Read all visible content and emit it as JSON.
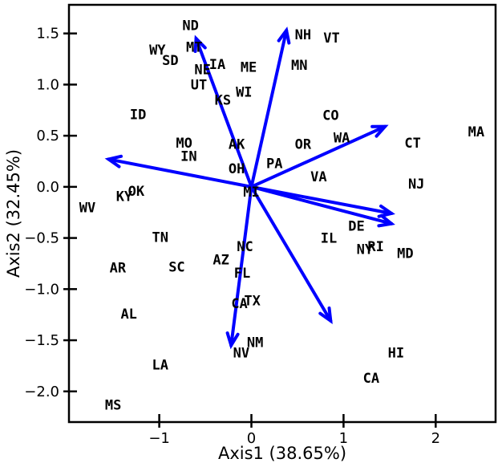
{
  "chart_data": {
    "type": "scatter",
    "title": "",
    "xlabel": "Axis1  (38.65%)",
    "ylabel": "Axis2  (32.45%)",
    "xlim": [
      -1.98,
      2.65
    ],
    "ylim": [
      -2.3,
      1.78
    ],
    "xticks": [
      -1,
      0,
      1,
      2
    ],
    "xtick_labels": [
      "−1",
      "0",
      "1",
      "2"
    ],
    "yticks": [
      -2.0,
      -1.5,
      -1.0,
      -0.5,
      0.0,
      0.5,
      1.0,
      1.5
    ],
    "ytick_labels": [
      "−2.0",
      "−1.5",
      "−1.0",
      "−0.5",
      "0.0",
      "0.5",
      "1.0",
      "1.5"
    ],
    "grid": false,
    "arrow_color": "#0000ff",
    "label_color": "#000000",
    "points": [
      {
        "label": "ND",
        "x": -0.66,
        "y": 1.58
      },
      {
        "label": "NH",
        "x": 0.56,
        "y": 1.49
      },
      {
        "label": "VT",
        "x": 0.87,
        "y": 1.46
      },
      {
        "label": "WY",
        "x": -1.02,
        "y": 1.34
      },
      {
        "label": "MT",
        "x": -0.62,
        "y": 1.37
      },
      {
        "label": "SD",
        "x": -0.88,
        "y": 1.24
      },
      {
        "label": "NE",
        "x": -0.53,
        "y": 1.15
      },
      {
        "label": "IA",
        "x": -0.37,
        "y": 1.2
      },
      {
        "label": "ME",
        "x": -0.03,
        "y": 1.17
      },
      {
        "label": "MN",
        "x": 0.52,
        "y": 1.19
      },
      {
        "label": "UT",
        "x": -0.57,
        "y": 1.0
      },
      {
        "label": "WI",
        "x": -0.08,
        "y": 0.93
      },
      {
        "label": "KS",
        "x": -0.31,
        "y": 0.85
      },
      {
        "label": "ID",
        "x": -1.23,
        "y": 0.71
      },
      {
        "label": "CO",
        "x": 0.86,
        "y": 0.7
      },
      {
        "label": "MA",
        "x": 2.44,
        "y": 0.54
      },
      {
        "label": "MO",
        "x": -0.73,
        "y": 0.43
      },
      {
        "label": "AK",
        "x": -0.16,
        "y": 0.42
      },
      {
        "label": "WA",
        "x": 0.98,
        "y": 0.48
      },
      {
        "label": "CT",
        "x": 1.75,
        "y": 0.43
      },
      {
        "label": "OR",
        "x": 0.56,
        "y": 0.42
      },
      {
        "label": "IN",
        "x": -0.68,
        "y": 0.3
      },
      {
        "label": "OH",
        "x": -0.16,
        "y": 0.18
      },
      {
        "label": "PA",
        "x": 0.25,
        "y": 0.23
      },
      {
        "label": "VA",
        "x": 0.73,
        "y": 0.1
      },
      {
        "label": "NJ",
        "x": 1.79,
        "y": 0.03
      },
      {
        "label": "OK",
        "x": -1.25,
        "y": -0.04
      },
      {
        "label": "KY",
        "x": -1.38,
        "y": -0.09
      },
      {
        "label": "MI",
        "x": 0.0,
        "y": -0.05
      },
      {
        "label": "WV",
        "x": -1.78,
        "y": -0.2
      },
      {
        "label": "DE",
        "x": 1.14,
        "y": -0.38
      },
      {
        "label": "TN",
        "x": -0.99,
        "y": -0.49
      },
      {
        "label": "IL",
        "x": 0.84,
        "y": -0.5
      },
      {
        "label": "NY",
        "x": 1.23,
        "y": -0.61
      },
      {
        "label": "RI",
        "x": 1.35,
        "y": -0.58
      },
      {
        "label": "MD",
        "x": 1.67,
        "y": -0.65
      },
      {
        "label": "NC",
        "x": -0.07,
        "y": -0.58
      },
      {
        "label": "AZ",
        "x": -0.33,
        "y": -0.71
      },
      {
        "label": "AR",
        "x": -1.45,
        "y": -0.79
      },
      {
        "label": "SC",
        "x": -0.81,
        "y": -0.78
      },
      {
        "label": "FL",
        "x": -0.1,
        "y": -0.84
      },
      {
        "label": "CA",
        "x": -0.13,
        "y": -1.14
      },
      {
        "label": "TX",
        "x": 0.01,
        "y": -1.11
      },
      {
        "label": "AL",
        "x": -1.33,
        "y": -1.24
      },
      {
        "label": "NM",
        "x": 0.04,
        "y": -1.52
      },
      {
        "label": "NV",
        "x": -0.11,
        "y": -1.62
      },
      {
        "label": "HI",
        "x": 1.57,
        "y": -1.62
      },
      {
        "label": "LA",
        "x": -0.99,
        "y": -1.74
      },
      {
        "label": "CA",
        "x": 1.3,
        "y": -1.87
      },
      {
        "label": "MS",
        "x": -1.5,
        "y": -2.13
      }
    ],
    "arrows": [
      {
        "x": 0.38,
        "y": 1.53
      },
      {
        "x": -0.6,
        "y": 1.45
      },
      {
        "x": -1.55,
        "y": 0.27
      },
      {
        "x": 1.45,
        "y": 0.59
      },
      {
        "x": 1.52,
        "y": -0.26
      },
      {
        "x": 1.52,
        "y": -0.36
      },
      {
        "x": 0.86,
        "y": -1.31
      },
      {
        "x": -0.22,
        "y": -1.55
      }
    ]
  }
}
